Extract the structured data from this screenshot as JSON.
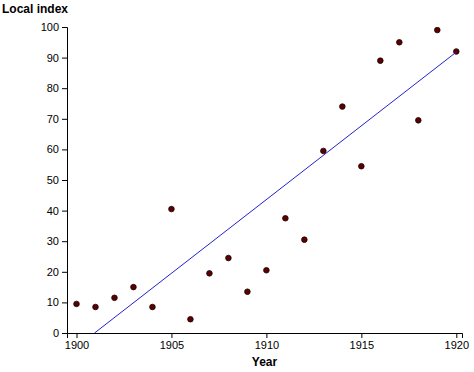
{
  "chart_data": {
    "type": "scatter",
    "x_label": "Year",
    "y_label": "Local index",
    "xlim": [
      1899.5,
      1920.3
    ],
    "ylim": [
      0,
      100
    ],
    "xticks": [
      1900,
      1905,
      1910,
      1915,
      1920
    ],
    "yticks": [
      0,
      10,
      20,
      30,
      40,
      50,
      60,
      70,
      80,
      90,
      100
    ],
    "grid": false,
    "series": [
      {
        "type": "scatter",
        "color": "#5a0000",
        "marker": "circle",
        "x": [
          1900,
          1901,
          1902,
          1903,
          1904,
          1905,
          1906,
          1907,
          1908,
          1909,
          1910,
          1911,
          1912,
          1913,
          1914,
          1915,
          1916,
          1917,
          1918,
          1919,
          1920
        ],
        "values": [
          9.5,
          8.5,
          11.5,
          15,
          8.5,
          40.5,
          4.5,
          19.5,
          24.5,
          13.5,
          20.5,
          37.5,
          30.5,
          59.5,
          74,
          54.5,
          89,
          95,
          69.5,
          99,
          92
        ]
      },
      {
        "type": "line",
        "color": "#2222cc",
        "line_style": "solid",
        "x": [
          1900.95,
          1920
        ],
        "values": [
          0,
          91.8
        ]
      }
    ]
  }
}
